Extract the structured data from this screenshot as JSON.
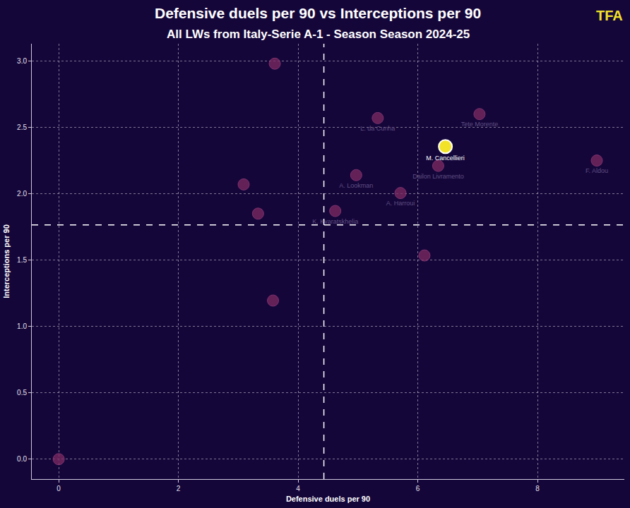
{
  "chart_data": {
    "type": "scatter",
    "title": "Defensive duels per 90 vs Interceptions per 90",
    "subtitle": "All LWs from Italy-Serie A-1 - Season Season 2024-25",
    "logo": "TFA",
    "x_label": "Defensive duels per 90",
    "y_label": "Interceptions per 90",
    "names": [
      null,
      "L. da Cunha",
      "Tete Morente",
      "F. Aldou",
      "Dailon Livramento",
      "A. Lookman",
      null,
      "A. Harroui",
      null,
      "K. Kvaratskhelia",
      null,
      null,
      null,
      "M. Cancellieri"
    ],
    "x": [
      3.61,
      5.33,
      7.03,
      8.99,
      6.34,
      4.97,
      3.09,
      5.71,
      3.33,
      4.62,
      6.11,
      3.58,
      0,
      6.46
    ],
    "y": [
      2.98,
      2.57,
      2.6,
      2.25,
      2.21,
      2.14,
      2.07,
      2.005,
      1.85,
      1.87,
      1.535,
      1.195,
      0,
      2.355
    ],
    "colors": [
      "#7d2a62",
      "#7d2a62",
      "#7d2a62",
      "#7d2a62",
      "#7d2a62",
      "#7d2a62",
      "#7d2a62",
      "#7d2a62",
      "#7d2a62",
      "#7d2a62",
      "#7d2a62",
      "#7d2a62",
      "#7d2a62",
      "#f2e22a"
    ],
    "reference_lines": {
      "x": 4.43,
      "y": 1.765
    },
    "xlim": [
      -0.45,
      9.45
    ],
    "ylim": [
      -0.15,
      3.13
    ],
    "xticks": [
      0,
      2,
      4,
      6,
      8
    ],
    "yticks": [
      {
        "value": 0,
        "label": "0.0"
      },
      {
        "value": 0.5,
        "label": "0.5"
      },
      {
        "value": 1,
        "label": "1.0"
      },
      {
        "value": 1.5,
        "label": "1.5"
      },
      {
        "value": 2,
        "label": "2.0"
      },
      {
        "value": 2.5,
        "label": "2.5"
      },
      {
        "value": 3,
        "label": "3.0"
      }
    ],
    "grid": true,
    "marker": "circle"
  }
}
